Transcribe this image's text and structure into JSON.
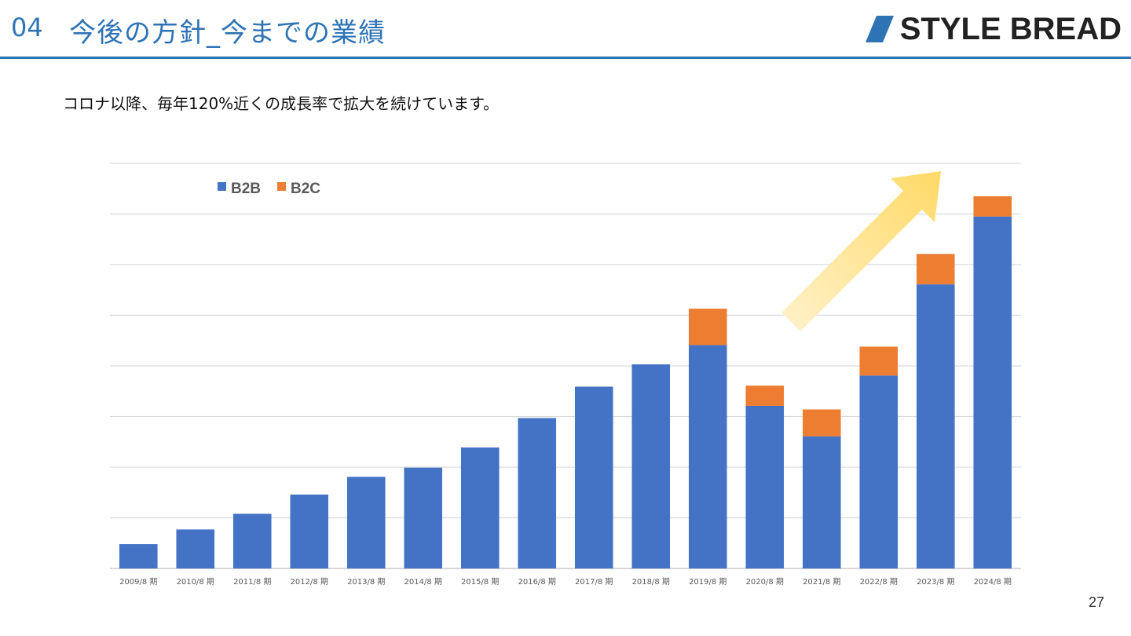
{
  "header": {
    "section_number": "04",
    "title": "今後の方針_今までの業績",
    "logo_text": "STYLE BREAD"
  },
  "subtitle": "コロナ以降、毎年120%近くの成長率で拡大を続けています。",
  "page_number": "27",
  "colors": {
    "accent": "#2e74b5",
    "b2b": "#4472c4",
    "b2c": "#ed7d31",
    "arrow": "#ffd966"
  },
  "chart_data": {
    "type": "bar",
    "stacked": true,
    "categories": [
      "2009/8 期",
      "2010/8 期",
      "2011/8 期",
      "2012/8 期",
      "2013/8 期",
      "2014/8 期",
      "2015/8 期",
      "2016/8 期",
      "2017/8 期",
      "2018/8 期",
      "2019/8 期",
      "2020/8 期",
      "2021/8 期",
      "2022/8 期",
      "2023/8 期",
      "2024/8 期"
    ],
    "series": [
      {
        "name": "B2B",
        "color": "#4472c4",
        "values": [
          0.48,
          0.77,
          1.08,
          1.46,
          1.81,
          1.99,
          2.39,
          2.97,
          3.59,
          4.03,
          4.41,
          3.21,
          2.61,
          3.81,
          5.61,
          6.95
        ]
      },
      {
        "name": "B2C",
        "color": "#ed7d31",
        "values": [
          0,
          0,
          0,
          0,
          0,
          0,
          0,
          0,
          0,
          0,
          0.72,
          0.4,
          0.53,
          0.57,
          0.6,
          0.4
        ]
      }
    ],
    "ylim": [
      0,
      8
    ],
    "gridlines": 8,
    "y_tick_labels": false,
    "legend": "top-left",
    "annotation": "growth-arrow"
  }
}
